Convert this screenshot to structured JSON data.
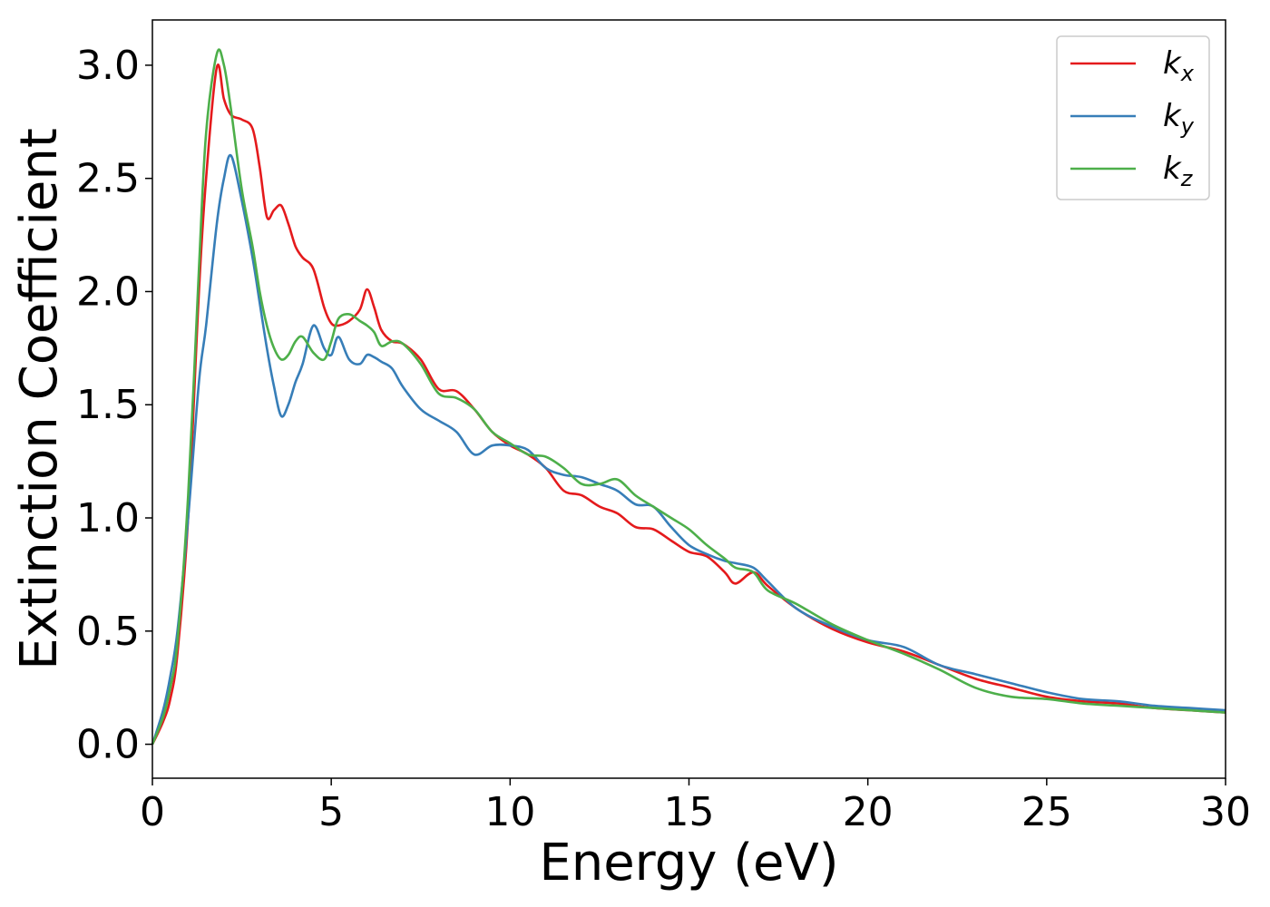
{
  "chart_data": {
    "type": "line",
    "xlabel": "Energy (eV)",
    "ylabel": "Extinction Coefficient",
    "xlim": [
      0,
      30
    ],
    "ylim": [
      -0.15,
      3.2
    ],
    "xticks": [
      "0",
      "5",
      "10",
      "15",
      "20",
      "25",
      "30"
    ],
    "yticks": [
      "0.0",
      "0.5",
      "1.0",
      "1.5",
      "2.0",
      "2.5",
      "3.0"
    ],
    "grid": false,
    "legend_position": "top-right",
    "series": [
      {
        "name": "k_x",
        "label_base": "k",
        "label_sub": "x",
        "color": "#e41a1c",
        "x": [
          0,
          0.3,
          0.5,
          0.7,
          1.0,
          1.3,
          1.5,
          1.8,
          2.0,
          2.2,
          2.5,
          2.8,
          3.0,
          3.2,
          3.4,
          3.6,
          3.8,
          4.0,
          4.2,
          4.5,
          4.8,
          5.0,
          5.2,
          5.5,
          5.8,
          6.0,
          6.2,
          6.4,
          6.7,
          7.0,
          7.5,
          8.0,
          8.5,
          9.0,
          9.5,
          10.0,
          10.5,
          11.0,
          11.5,
          12.0,
          12.5,
          13.0,
          13.5,
          14.0,
          14.5,
          15.0,
          15.5,
          16.0,
          16.3,
          16.8,
          17.2,
          18.0,
          19.0,
          20.0,
          21.0,
          22.0,
          23.0,
          24.0,
          25.0,
          26.0,
          27.0,
          28.0,
          29.0,
          30.0
        ],
        "y": [
          0.0,
          0.1,
          0.2,
          0.4,
          1.0,
          2.0,
          2.5,
          2.99,
          2.85,
          2.78,
          2.76,
          2.72,
          2.55,
          2.33,
          2.36,
          2.38,
          2.3,
          2.2,
          2.15,
          2.1,
          1.93,
          1.86,
          1.85,
          1.87,
          1.92,
          2.01,
          1.93,
          1.83,
          1.78,
          1.77,
          1.7,
          1.57,
          1.56,
          1.48,
          1.38,
          1.32,
          1.28,
          1.22,
          1.12,
          1.1,
          1.05,
          1.02,
          0.96,
          0.95,
          0.9,
          0.85,
          0.83,
          0.76,
          0.71,
          0.76,
          0.7,
          0.6,
          0.51,
          0.45,
          0.41,
          0.35,
          0.29,
          0.25,
          0.21,
          0.19,
          0.18,
          0.16,
          0.15,
          0.14
        ]
      },
      {
        "name": "k_y",
        "label_base": "k",
        "label_sub": "y",
        "color": "#377eb8",
        "x": [
          0,
          0.3,
          0.5,
          0.7,
          1.0,
          1.3,
          1.5,
          1.8,
          2.0,
          2.2,
          2.5,
          2.8,
          3.0,
          3.2,
          3.4,
          3.6,
          3.8,
          4.0,
          4.2,
          4.5,
          4.8,
          5.0,
          5.2,
          5.5,
          5.8,
          6.0,
          6.2,
          6.4,
          6.7,
          7.0,
          7.5,
          8.0,
          8.5,
          9.0,
          9.5,
          10.0,
          10.5,
          11.0,
          11.5,
          12.0,
          12.5,
          13.0,
          13.5,
          14.0,
          14.5,
          15.0,
          15.5,
          16.0,
          16.3,
          16.8,
          17.2,
          18.0,
          19.0,
          20.0,
          21.0,
          22.0,
          23.0,
          24.0,
          25.0,
          26.0,
          27.0,
          28.0,
          29.0,
          30.0
        ],
        "y": [
          0.0,
          0.15,
          0.3,
          0.5,
          1.0,
          1.6,
          1.85,
          2.3,
          2.5,
          2.6,
          2.4,
          2.15,
          1.95,
          1.75,
          1.58,
          1.45,
          1.5,
          1.6,
          1.68,
          1.85,
          1.75,
          1.72,
          1.8,
          1.7,
          1.68,
          1.72,
          1.71,
          1.69,
          1.66,
          1.58,
          1.48,
          1.43,
          1.38,
          1.28,
          1.32,
          1.32,
          1.3,
          1.22,
          1.19,
          1.18,
          1.15,
          1.12,
          1.06,
          1.05,
          0.96,
          0.88,
          0.84,
          0.81,
          0.8,
          0.78,
          0.72,
          0.6,
          0.52,
          0.46,
          0.43,
          0.35,
          0.31,
          0.27,
          0.23,
          0.2,
          0.19,
          0.17,
          0.16,
          0.15
        ]
      },
      {
        "name": "k_z",
        "label_base": "k",
        "label_sub": "z",
        "color": "#4daf4a",
        "x": [
          0,
          0.3,
          0.5,
          0.7,
          1.0,
          1.3,
          1.5,
          1.8,
          2.0,
          2.2,
          2.5,
          2.8,
          3.0,
          3.2,
          3.4,
          3.6,
          3.8,
          4.0,
          4.2,
          4.5,
          4.8,
          5.0,
          5.2,
          5.5,
          5.8,
          6.0,
          6.2,
          6.4,
          6.7,
          7.0,
          7.5,
          8.0,
          8.5,
          9.0,
          9.5,
          10.0,
          10.5,
          11.0,
          11.5,
          12.0,
          12.5,
          13.0,
          13.5,
          14.0,
          14.5,
          15.0,
          15.5,
          16.0,
          16.3,
          16.8,
          17.2,
          18.0,
          19.0,
          20.0,
          21.0,
          22.0,
          23.0,
          24.0,
          25.0,
          26.0,
          27.0,
          28.0,
          29.0,
          30.0
        ],
        "y": [
          0.0,
          0.12,
          0.25,
          0.45,
          1.1,
          2.1,
          2.7,
          3.05,
          3.0,
          2.8,
          2.45,
          2.2,
          2.0,
          1.85,
          1.75,
          1.7,
          1.72,
          1.78,
          1.8,
          1.73,
          1.7,
          1.78,
          1.88,
          1.9,
          1.87,
          1.85,
          1.82,
          1.76,
          1.78,
          1.77,
          1.68,
          1.55,
          1.53,
          1.48,
          1.38,
          1.33,
          1.28,
          1.27,
          1.22,
          1.15,
          1.15,
          1.17,
          1.1,
          1.05,
          1.0,
          0.95,
          0.88,
          0.82,
          0.78,
          0.76,
          0.68,
          0.62,
          0.53,
          0.46,
          0.4,
          0.33,
          0.25,
          0.21,
          0.2,
          0.18,
          0.17,
          0.16,
          0.15,
          0.14
        ]
      }
    ]
  }
}
